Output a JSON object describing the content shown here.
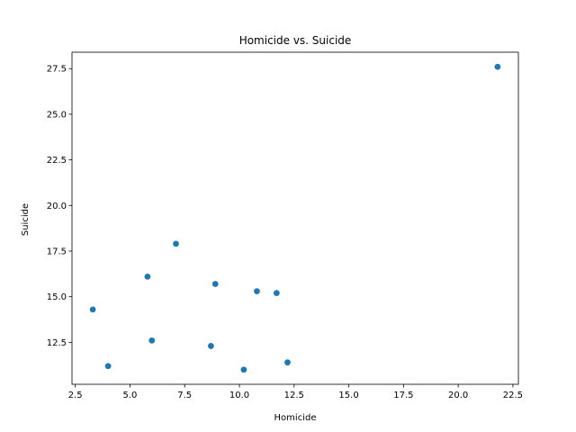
{
  "chart_data": {
    "type": "scatter",
    "title": "Homicide vs. Suicide",
    "xlabel": "Homicide",
    "ylabel": "Suicide",
    "xlim": [
      2.35,
      22.75
    ],
    "ylim": [
      10.2,
      28.4
    ],
    "xticks": [
      2.5,
      5.0,
      7.5,
      10.0,
      12.5,
      15.0,
      17.5,
      20.0,
      22.5
    ],
    "xtick_labels": [
      "2.5",
      "5.0",
      "7.5",
      "10.0",
      "12.5",
      "15.0",
      "17.5",
      "20.0",
      "22.5"
    ],
    "yticks": [
      12.5,
      15.0,
      17.5,
      20.0,
      22.5,
      25.0,
      27.5
    ],
    "ytick_labels": [
      "12.5",
      "15.0",
      "17.5",
      "20.0",
      "22.5",
      "25.0",
      "27.5"
    ],
    "grid": false,
    "legend": "none",
    "color": "#1f77b4",
    "series": [
      {
        "x": [
          21.8,
          7.1,
          5.8,
          8.9,
          10.8,
          11.7,
          3.3,
          6.0,
          8.7,
          4.0,
          12.2,
          10.2
        ],
        "y": [
          27.6,
          17.9,
          16.1,
          15.7,
          15.3,
          15.2,
          14.3,
          12.6,
          12.3,
          11.2,
          11.4,
          11.0
        ]
      }
    ]
  }
}
